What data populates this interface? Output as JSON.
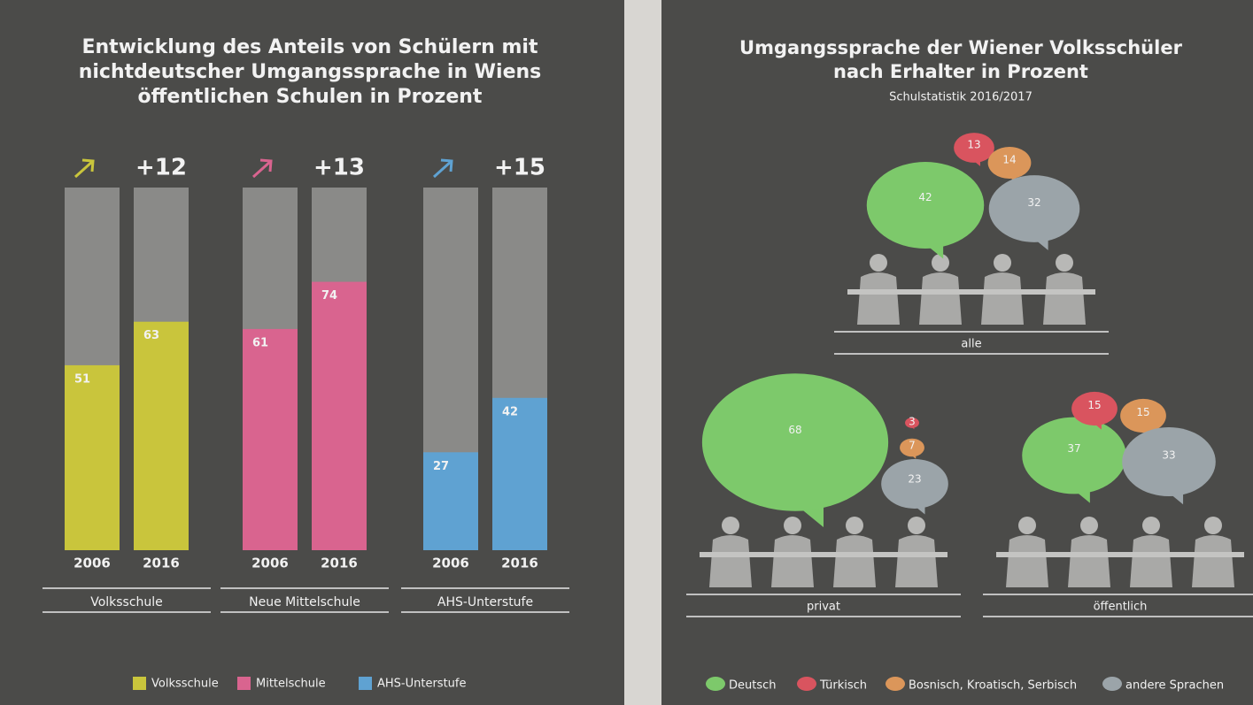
{
  "chart_data": [
    {
      "type": "bar",
      "title": [
        "Entwicklung des Anteils von Schülern mit",
        "nichtdeutscher Umgangssprache in Wiens",
        "öffentlichen Schulen in Prozent"
      ],
      "groups": [
        "Volksschule",
        "Neue Mittelschule",
        "AHS-Unterstufe"
      ],
      "categories": [
        "2006",
        "2016"
      ],
      "series": [
        {
          "name": "Volksschule",
          "color": "#c9c53c",
          "values": [
            51,
            63
          ]
        },
        {
          "name": "Mittelschule",
          "color": "#d9648f",
          "values": [
            61,
            74
          ]
        },
        {
          "name": "AHS-Unterstufe",
          "color": "#5fa2d2",
          "values": [
            27,
            42
          ]
        }
      ],
      "changes": [
        12,
        13,
        15
      ],
      "change_labels": [
        "+12",
        "+13",
        "+15"
      ],
      "ylim": [
        0,
        100
      ]
    },
    {
      "type": "bubble",
      "title": [
        "Umgangssprache der Wiener Volksschüler",
        "nach Erhalter in Prozent"
      ],
      "subtitle": "Schulstatistik 2016/2017",
      "categories": [
        "alle",
        "privat",
        "öffentlich"
      ],
      "series": [
        {
          "name": "Deutsch",
          "color": "#7dc96b",
          "values": [
            42,
            68,
            37
          ]
        },
        {
          "name": "Türkisch",
          "color": "#d9545f",
          "values": [
            13,
            3,
            15
          ]
        },
        {
          "name": "Bosnisch, Kroatisch, Serbisch",
          "color": "#db965a",
          "values": [
            14,
            7,
            15
          ]
        },
        {
          "name": "andere Sprachen",
          "color": "#9ba4a9",
          "values": [
            32,
            23,
            33
          ]
        }
      ]
    }
  ]
}
